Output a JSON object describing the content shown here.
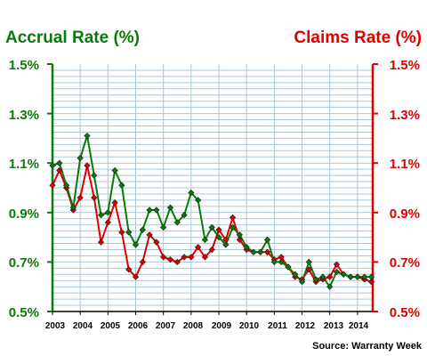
{
  "chart_data": {
    "type": "line",
    "left_axis_title": "Accrual Rate (%)",
    "right_axis_title": "Claims Rate (%)",
    "source": "Source: Warranty Week",
    "y_ticks": [
      "1.5%",
      "1.3%",
      "1.1%",
      "0.9%",
      "0.7%",
      "0.5%"
    ],
    "ylim": [
      0.5,
      1.5
    ],
    "xlim": [
      2003,
      2014.55
    ],
    "x_ticks": [
      "2003",
      "2004",
      "2005",
      "2006",
      "2007",
      "2008",
      "2009",
      "2010",
      "2011",
      "2012",
      "2013",
      "2014"
    ],
    "grid": true,
    "colors": {
      "accrual": "#0a7a0a",
      "claims": "#e00000",
      "grid": "#a8c8d8",
      "left_axis": "#0a7a0a",
      "right_axis": "#e00000"
    },
    "series": [
      {
        "key": "accrual",
        "points": [
          [
            2003.0,
            1.09
          ],
          [
            2003.25,
            1.1
          ],
          [
            2003.5,
            1.01
          ],
          [
            2003.75,
            0.92
          ],
          [
            2004.0,
            1.12
          ],
          [
            2004.25,
            1.21
          ],
          [
            2004.5,
            1.05
          ],
          [
            2004.75,
            0.89
          ],
          [
            2005.0,
            0.9
          ],
          [
            2005.25,
            1.07
          ],
          [
            2005.5,
            1.01
          ],
          [
            2005.75,
            0.82
          ],
          [
            2006.0,
            0.77
          ],
          [
            2006.25,
            0.83
          ],
          [
            2006.5,
            0.91
          ],
          [
            2006.75,
            0.91
          ],
          [
            2007.0,
            0.84
          ],
          [
            2007.25,
            0.92
          ],
          [
            2007.5,
            0.86
          ],
          [
            2007.75,
            0.89
          ],
          [
            2008.0,
            0.98
          ],
          [
            2008.25,
            0.95
          ],
          [
            2008.5,
            0.79
          ],
          [
            2008.75,
            0.84
          ],
          [
            2009.0,
            0.8
          ],
          [
            2009.25,
            0.77
          ],
          [
            2009.5,
            0.84
          ],
          [
            2009.75,
            0.81
          ],
          [
            2010.0,
            0.76
          ],
          [
            2010.25,
            0.74
          ],
          [
            2010.5,
            0.74
          ],
          [
            2010.75,
            0.79
          ],
          [
            2011.0,
            0.7
          ],
          [
            2011.25,
            0.7
          ],
          [
            2011.5,
            0.68
          ],
          [
            2011.75,
            0.65
          ],
          [
            2012.0,
            0.62
          ],
          [
            2012.25,
            0.7
          ],
          [
            2012.5,
            0.63
          ],
          [
            2012.75,
            0.64
          ],
          [
            2013.0,
            0.6
          ],
          [
            2013.25,
            0.66
          ],
          [
            2013.5,
            0.65
          ],
          [
            2013.75,
            0.64
          ],
          [
            2014.0,
            0.64
          ],
          [
            2014.25,
            0.64
          ],
          [
            2014.5,
            0.64
          ]
        ]
      },
      {
        "key": "claims",
        "points": [
          [
            2003.0,
            1.01
          ],
          [
            2003.25,
            1.07
          ],
          [
            2003.5,
            1.0
          ],
          [
            2003.75,
            0.91
          ],
          [
            2004.0,
            0.96
          ],
          [
            2004.25,
            1.09
          ],
          [
            2004.5,
            0.96
          ],
          [
            2004.75,
            0.78
          ],
          [
            2005.0,
            0.86
          ],
          [
            2005.25,
            0.94
          ],
          [
            2005.5,
            0.82
          ],
          [
            2005.75,
            0.67
          ],
          [
            2006.0,
            0.64
          ],
          [
            2006.25,
            0.7
          ],
          [
            2006.5,
            0.81
          ],
          [
            2006.75,
            0.78
          ],
          [
            2007.0,
            0.72
          ],
          [
            2007.25,
            0.71
          ],
          [
            2007.5,
            0.7
          ],
          [
            2007.75,
            0.72
          ],
          [
            2008.0,
            0.72
          ],
          [
            2008.25,
            0.76
          ],
          [
            2008.5,
            0.72
          ],
          [
            2008.75,
            0.75
          ],
          [
            2009.0,
            0.83
          ],
          [
            2009.25,
            0.79
          ],
          [
            2009.5,
            0.88
          ],
          [
            2009.75,
            0.79
          ],
          [
            2010.0,
            0.75
          ],
          [
            2010.25,
            0.74
          ],
          [
            2010.5,
            0.74
          ],
          [
            2010.75,
            0.74
          ],
          [
            2011.0,
            0.71
          ],
          [
            2011.25,
            0.72
          ],
          [
            2011.5,
            0.68
          ],
          [
            2011.75,
            0.64
          ],
          [
            2012.0,
            0.63
          ],
          [
            2012.25,
            0.67
          ],
          [
            2012.5,
            0.62
          ],
          [
            2012.75,
            0.63
          ],
          [
            2013.0,
            0.64
          ],
          [
            2013.25,
            0.69
          ],
          [
            2013.5,
            0.65
          ],
          [
            2013.75,
            0.64
          ],
          [
            2014.0,
            0.64
          ],
          [
            2014.25,
            0.63
          ],
          [
            2014.5,
            0.62
          ]
        ]
      }
    ]
  }
}
